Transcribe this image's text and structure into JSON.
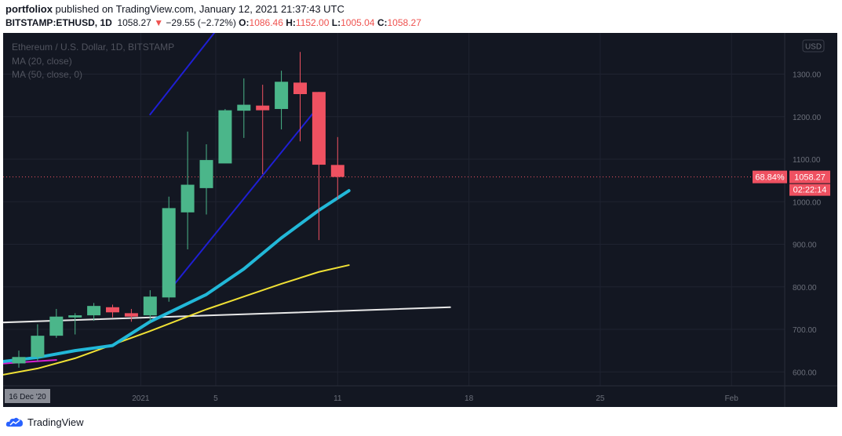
{
  "header": {
    "author": "portfoliox",
    "published_text": " published on TradingView.com, January 12, 2021 21:37:43 UTC",
    "symbol": "BITSTAMP:ETHUSD, 1D",
    "last": "1058.27",
    "change_arrow": "▼",
    "change": "−29.55 (−2.72%)",
    "o_label": "O:",
    "o_value": "1086.46",
    "h_label": "H:",
    "h_value": "1152.00",
    "l_label": "L:",
    "l_value": "1005.04",
    "c_label": "C:",
    "c_value": "1058.27"
  },
  "legend": {
    "title": "Ethereum / U.S. Dollar, 1D, BITSTAMP",
    "ma20": "MA (20, close)",
    "ma50": "MA (50, close, 0)"
  },
  "footer": {
    "brand": "TradingView"
  },
  "colors": {
    "bg": "#131722",
    "grid": "#1f2330",
    "up": "#4bb68a",
    "down": "#ef5161",
    "ma20": "#22b8d8",
    "ma50": "#f0e135",
    "channel": "#1f1fd4",
    "support": "#e8e8e8",
    "extra": "#d81ed0"
  },
  "chart_data": {
    "type": "candlestick",
    "title": "Ethereum / U.S. Dollar, 1D, BITSTAMP",
    "currency": "USD",
    "ylim": [
      580,
      1380
    ],
    "y_ticks": [
      "600.00",
      "700.00",
      "800.00",
      "900.00",
      "1000.00",
      "1100.00",
      "1200.00",
      "1300.00"
    ],
    "x_ticks": [
      "18",
      "2021",
      "5",
      "11",
      "18",
      "25",
      "Feb"
    ],
    "crosshair_date": "16 Dec '20",
    "last_price_label": "1058.27",
    "last_pct_label": "68.84%",
    "countdown": "02:22:14",
    "candles": [
      {
        "o": 620,
        "h": 650,
        "l": 610,
        "c": 635
      },
      {
        "o": 635,
        "h": 712,
        "l": 625,
        "c": 685
      },
      {
        "o": 685,
        "h": 748,
        "l": 680,
        "c": 730
      },
      {
        "o": 728,
        "h": 738,
        "l": 688,
        "c": 733
      },
      {
        "o": 733,
        "h": 762,
        "l": 720,
        "c": 755
      },
      {
        "o": 752,
        "h": 758,
        "l": 728,
        "c": 740
      },
      {
        "o": 738,
        "h": 748,
        "l": 718,
        "c": 730
      },
      {
        "o": 733,
        "h": 792,
        "l": 716,
        "c": 777
      },
      {
        "o": 775,
        "h": 1012,
        "l": 765,
        "c": 985
      },
      {
        "o": 975,
        "h": 1165,
        "l": 888,
        "c": 1040
      },
      {
        "o": 1032,
        "h": 1135,
        "l": 970,
        "c": 1098
      },
      {
        "o": 1090,
        "h": 1218,
        "l": 1092,
        "c": 1215
      },
      {
        "o": 1214,
        "h": 1290,
        "l": 1150,
        "c": 1228
      },
      {
        "o": 1226,
        "h": 1275,
        "l": 1065,
        "c": 1215
      },
      {
        "o": 1218,
        "h": 1308,
        "l": 1170,
        "c": 1282
      },
      {
        "o": 1280,
        "h": 1352,
        "l": 1142,
        "c": 1253
      },
      {
        "o": 1258,
        "h": 1258,
        "l": 910,
        "c": 1087
      },
      {
        "o": 1086.46,
        "h": 1152,
        "l": 1005.04,
        "c": 1058.27
      }
    ],
    "ma20": [
      [
        -7,
        603
      ],
      [
        -3,
        613
      ],
      [
        1,
        634
      ],
      [
        3,
        650
      ],
      [
        5,
        662
      ],
      [
        7,
        718
      ],
      [
        10,
        782
      ],
      [
        12,
        842
      ],
      [
        14,
        915
      ],
      [
        16,
        980
      ],
      [
        17.6,
        1026
      ]
    ],
    "ma50": [
      [
        -5,
        566
      ],
      [
        -3,
        578
      ],
      [
        -1,
        592
      ],
      [
        1,
        608
      ],
      [
        3,
        632
      ],
      [
        5,
        664
      ],
      [
        7,
        696
      ],
      [
        10,
        747
      ],
      [
        12,
        777
      ],
      [
        14,
        807
      ],
      [
        16,
        835
      ],
      [
        17.6,
        851
      ]
    ],
    "extra_line": [
      [
        -7,
        594
      ],
      [
        -5,
        601
      ],
      [
        -3,
        611
      ],
      [
        -1,
        619
      ],
      [
        2,
        628
      ]
    ],
    "channel_upper": [
      [
        7,
        1205
      ],
      [
        16,
        1710
      ]
    ],
    "channel_lower": [
      [
        8,
        790
      ],
      [
        16,
        1225
      ]
    ],
    "support_line": [
      [
        -7,
        707
      ],
      [
        23,
        752
      ]
    ]
  }
}
